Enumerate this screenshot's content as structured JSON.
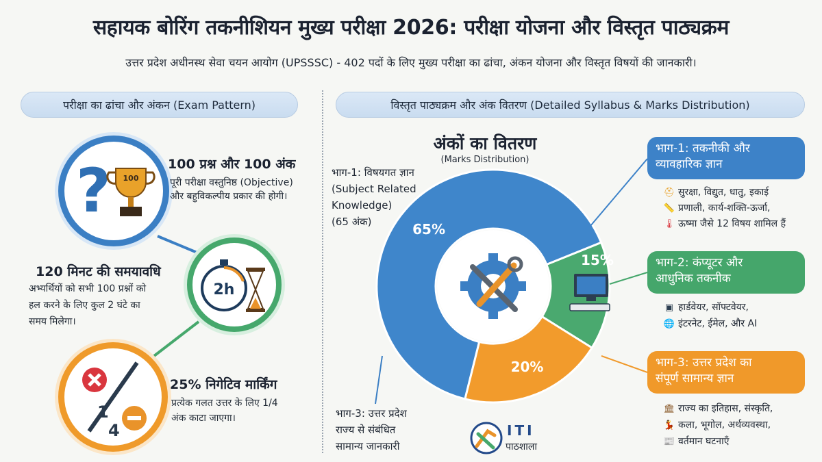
{
  "header": {
    "title": "सहायक बोरिंग तकनीशियन मुख्य परीक्षा 2026: परीक्षा योजना और विस्तृत पाठ्यक्रम",
    "subtitle": "उत्तर प्रदेश अधीनस्थ सेवा चयन आयोग (UPSSSC) - 402 पदों के लिए मुख्य परीक्षा का ढांचा, अंकन योजना और विस्तृत विषयों की जानकारी।"
  },
  "left": {
    "heading": "परीक्षा का ढांचा और अंकन (Exam Pattern)",
    "items": [
      {
        "title": "100 प्रश्न और 100 अंक",
        "lines": [
          "पूरी परीक्षा वस्तुनिष्ठ (Objective)",
          "और बहुविकल्पीय प्रकार की होगी।"
        ],
        "icon": "question-trophy-icon",
        "icon_text": "100"
      },
      {
        "title": "120 मिनट की समयावधि",
        "lines": [
          "अभ्यर्थियों को सभी 100 प्रश्नों को",
          "हल करने के लिए कुल 2 घंटे का",
          "समय मिलेगा।"
        ],
        "icon": "stopwatch-hourglass-icon",
        "icon_text": "2h"
      },
      {
        "title": "25% निगेटिव मार्किंग",
        "lines": [
          "प्रत्येक गलत उत्तर के लिए 1/4",
          "अंक काटा जाएगा।"
        ],
        "icon": "negative-marking-icon",
        "icon_text_top": "1",
        "icon_text_bottom": "4"
      }
    ]
  },
  "right": {
    "heading": "विस्तृत पाठ्यक्रम और अंक वितरण (Detailed Syllabus & Marks Distribution)",
    "donut_title": "अंकों का वितरण",
    "donut_subtitle": "(Marks Distribution)",
    "part1_label": [
      "भाग-1: विषयगत ज्ञान",
      "(Subject Related",
      "Knowledge)",
      "(65 अंक)"
    ],
    "part3_label": [
      "भाग-3: उत्तर प्रदेश",
      "राज्य से संबंधित",
      "सामान्य जानकारी"
    ],
    "sections": [
      {
        "title": [
          "भाग-1: तकनीकी और",
          "व्यावहारिक ज्ञान"
        ],
        "color": "#3d82c8",
        "bullets": [
          {
            "icon": "helmet-icon",
            "text": "सुरक्षा, विद्युत, धातु, इकाई"
          },
          {
            "icon": "ruler-icon",
            "text": "प्रणाली, कार्य-शक्ति-ऊर्जा,"
          },
          {
            "icon": "thermometer-icon",
            "text": "ऊष्मा जैसे 12 विषय शामिल हैं"
          }
        ]
      },
      {
        "title": [
          "भाग-2: कंप्यूटर और",
          "आधुनिक तकनीक"
        ],
        "color": "#45a66b",
        "bullets": [
          {
            "icon": "chip-icon",
            "text": "हार्डवेयर, सॉफ्टवेयर,"
          },
          {
            "icon": "globe-icon",
            "text": "इंटरनेट, ईमेल, और AI"
          }
        ]
      },
      {
        "title": [
          "भाग-3: उत्तर प्रदेश का",
          "संपूर्ण सामान्य ज्ञान"
        ],
        "color": "#f0992a",
        "bullets": [
          {
            "icon": "monument-icon",
            "text": "राज्य का इतिहास, संस्कृति,"
          },
          {
            "icon": "dancer-icon",
            "text": "कला, भूगोल, अर्थव्यवस्था,"
          },
          {
            "icon": "news-icon",
            "text": "वर्तमान घटनाएँ"
          }
        ]
      }
    ],
    "logo": {
      "text": "ITI",
      "sub": "पाठशाला"
    }
  },
  "chart_data": {
    "type": "pie",
    "title": "अंकों का वितरण",
    "subtitle": "(Marks Distribution)",
    "categories": [
      "भाग-1",
      "भाग-2",
      "भाग-3"
    ],
    "values": [
      65,
      15,
      20
    ],
    "labels": [
      "65%",
      "15%",
      "20%"
    ],
    "colors": [
      "#3f86cb",
      "#4aa96f",
      "#f29b2c"
    ]
  }
}
